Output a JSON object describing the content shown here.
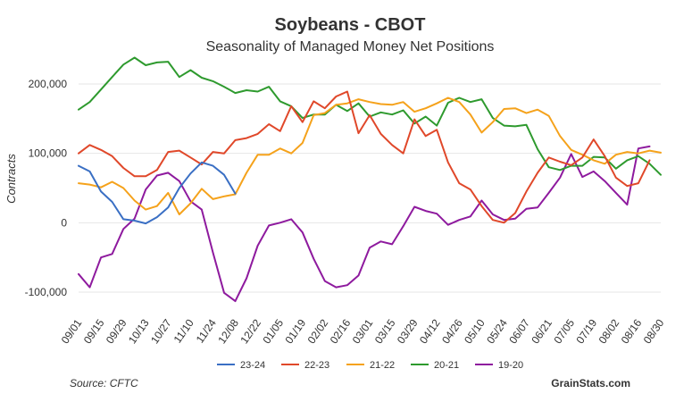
{
  "chart_data": {
    "type": "line",
    "title": "Soybeans - CBOT",
    "subtitle": "Seasonality of Managed Money Net Positions",
    "ylabel": "Contracts",
    "xlabel": "",
    "ylim": [
      -100000,
      200000
    ],
    "yticks": [
      -100000,
      0,
      100000,
      200000
    ],
    "ytick_labels": [
      "-100,000",
      "0",
      "100,000",
      "200,000"
    ],
    "grid": true,
    "legend_position": "bottom",
    "x_tick_labels": [
      "09/01",
      "09/15",
      "09/29",
      "10/13",
      "10/27",
      "11/10",
      "11/24",
      "12/08",
      "12/22",
      "01/05",
      "01/19",
      "02/02",
      "02/16",
      "03/01",
      "03/15",
      "03/29",
      "04/12",
      "04/26",
      "05/10",
      "05/24",
      "06/07",
      "06/21",
      "07/05",
      "07/19",
      "08/02",
      "08/16",
      "08/30"
    ],
    "series": [
      {
        "name": "23-24",
        "color": "#3a6fc4",
        "values": [
          82000,
          74000,
          45000,
          30000,
          5000,
          3000,
          -1000,
          8000,
          22000,
          50000,
          71000,
          87000,
          82000,
          69000,
          42000
        ]
      },
      {
        "name": "22-23",
        "color": "#e0482a",
        "values": [
          100000,
          112000,
          105000,
          96000,
          79000,
          67000,
          67000,
          76000,
          102000,
          104000,
          94000,
          84000,
          102000,
          100000,
          119000,
          122000,
          128000,
          142000,
          132000,
          168000,
          145000,
          175000,
          165000,
          182000,
          189000,
          129000,
          155000,
          128000,
          112000,
          100000,
          149000,
          125000,
          134000,
          87000,
          57000,
          48000,
          24000,
          4000,
          0,
          14000,
          45000,
          72000,
          94000,
          88000,
          83000,
          94000,
          120000,
          96000,
          65000,
          53000,
          57000,
          90000
        ]
      },
      {
        "name": "21-22",
        "color": "#f5a21b",
        "values": [
          57000,
          55000,
          51000,
          59000,
          50000,
          32000,
          19000,
          24000,
          43000,
          12000,
          28000,
          49000,
          34000,
          38000,
          41000,
          72000,
          98000,
          98000,
          107000,
          100000,
          115000,
          155000,
          158000,
          170000,
          172000,
          178000,
          174000,
          171000,
          170000,
          174000,
          160000,
          165000,
          172000,
          180000,
          174000,
          156000,
          130000,
          145000,
          164000,
          165000,
          158000,
          163000,
          154000,
          125000,
          105000,
          98000,
          90000,
          85000,
          98000,
          102000,
          100000,
          104000,
          101000
        ]
      },
      {
        "name": "20-21",
        "color": "#2e9a2e",
        "values": [
          163000,
          174000,
          192000,
          210000,
          228000,
          238000,
          227000,
          231000,
          232000,
          210000,
          220000,
          209000,
          204000,
          196000,
          187000,
          191000,
          189000,
          196000,
          175000,
          168000,
          151000,
          156000,
          156000,
          170000,
          161000,
          172000,
          153000,
          159000,
          156000,
          162000,
          143000,
          153000,
          140000,
          173000,
          180000,
          174000,
          178000,
          151000,
          140000,
          139000,
          141000,
          106000,
          80000,
          76000,
          82000,
          82000,
          95000,
          94000,
          78000,
          90000,
          96000,
          85000,
          69000
        ]
      },
      {
        "name": "19-20",
        "color": "#8e1a9e",
        "values": [
          -74000,
          -93000,
          -50000,
          -45000,
          -9000,
          6000,
          48000,
          68000,
          72000,
          60000,
          31000,
          19000,
          -43000,
          -101000,
          -113000,
          -80000,
          -33000,
          -4000,
          0,
          5000,
          -14000,
          -52000,
          -84000,
          -93000,
          -90000,
          -76000,
          -36000,
          -27000,
          -31000,
          -5000,
          23000,
          17000,
          13000,
          -3000,
          4000,
          9000,
          32000,
          12000,
          4000,
          6000,
          20000,
          22000,
          43000,
          65000,
          99000,
          66000,
          74000,
          60000,
          43000,
          26000,
          107000,
          110000
        ]
      }
    ]
  },
  "footer": {
    "source": "Source: CFTC",
    "brand": "GrainStats.com"
  }
}
